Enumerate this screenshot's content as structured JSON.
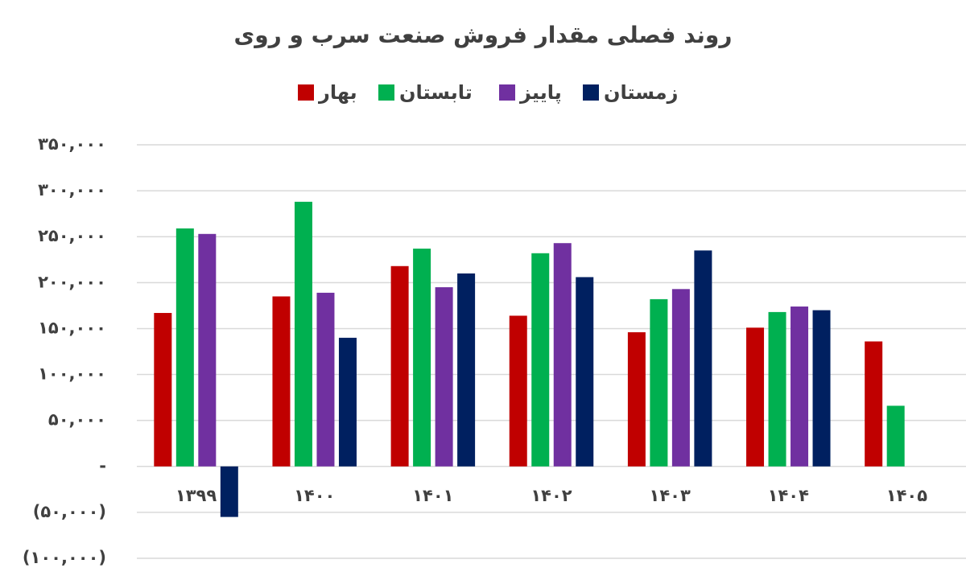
{
  "chart_data": {
    "type": "bar",
    "title": "روند فصلی مقدار فروش صنعت سرب و روی",
    "categories": [
      "۱۳۹۹",
      "۱۴۰۰",
      "۱۴۰۱",
      "۱۴۰۲",
      "۱۴۰۳",
      "۱۴۰۴",
      "۱۴۰۵"
    ],
    "series": [
      {
        "name": "بهار",
        "color": "#c00000",
        "values": [
          167000,
          185000,
          218000,
          164000,
          146000,
          151000,
          136000
        ]
      },
      {
        "name": "تابستان",
        "color": "#00b050",
        "values": [
          259000,
          288000,
          237000,
          232000,
          182000,
          168000,
          66000
        ]
      },
      {
        "name": "پاییز",
        "color": "#7030a0",
        "values": [
          253000,
          189000,
          195000,
          243000,
          193000,
          174000,
          null
        ]
      },
      {
        "name": "زمستان",
        "color": "#002060",
        "values": [
          -55000,
          140000,
          210000,
          206000,
          235000,
          170000,
          null
        ]
      }
    ],
    "ylim": [
      -100000,
      350000
    ],
    "yticks": [
      {
        "value": -100000,
        "label": "(۱۰۰,۰۰۰)"
      },
      {
        "value": -50000,
        "label": "(۵۰,۰۰۰)"
      },
      {
        "value": 0,
        "label": "-"
      },
      {
        "value": 50000,
        "label": "۵۰,۰۰۰"
      },
      {
        "value": 100000,
        "label": "۱۰۰,۰۰۰"
      },
      {
        "value": 150000,
        "label": "۱۵۰,۰۰۰"
      },
      {
        "value": 200000,
        "label": "۲۰۰,۰۰۰"
      },
      {
        "value": 250000,
        "label": "۲۵۰,۰۰۰"
      },
      {
        "value": 300000,
        "label": "۳۰۰,۰۰۰"
      },
      {
        "value": 350000,
        "label": "۳۵۰,۰۰۰"
      }
    ],
    "grid": true,
    "legend": "top"
  }
}
